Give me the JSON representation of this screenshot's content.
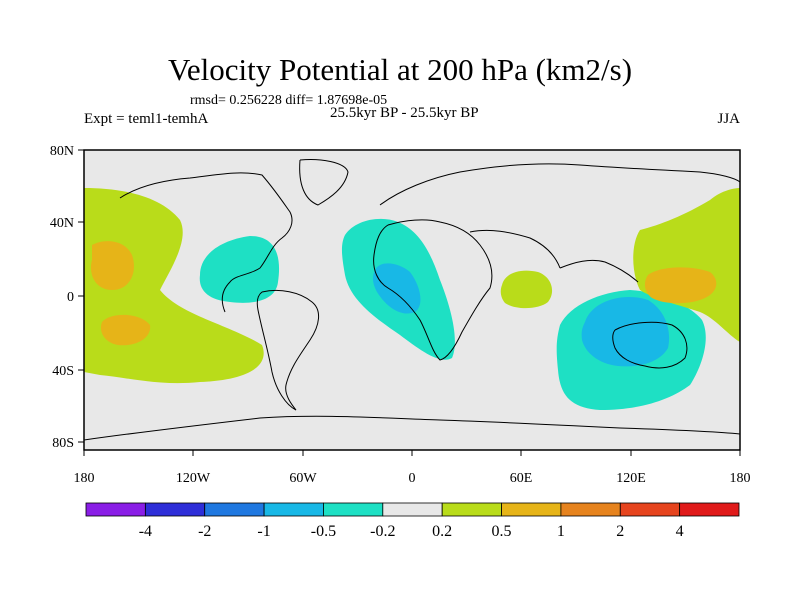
{
  "title": "Velocity Potential at 200 hPa (km2/s)",
  "stats": "rmsd= 0.256228 diff= 1.87698e-05",
  "experiment": "Expt = teml1-temhA",
  "period": "25.5kyr BP - 25.5kyr BP",
  "season": "JJA",
  "axes": {
    "x_ticks": [
      "180",
      "120W",
      "60W",
      "0",
      "60E",
      "120E",
      "180"
    ],
    "y_ticks": [
      "80N",
      "40N",
      "0",
      "40S",
      "80S"
    ]
  },
  "colorbar": {
    "labels": [
      "-4",
      "-2",
      "-1",
      "-0.5",
      "-0.2",
      "0.2",
      "0.5",
      "1",
      "2",
      "4"
    ],
    "colors": [
      "#8a1ee6",
      "#2e2ed8",
      "#1f78e0",
      "#18b8e6",
      "#1ee0c4",
      "#e8e8e8",
      "#b9dc1a",
      "#e6b418",
      "#e6831e",
      "#e6441e",
      "#e01a1a"
    ]
  },
  "colors": {
    "land_fill": "#e8e8e8",
    "frame": "#000000"
  }
}
